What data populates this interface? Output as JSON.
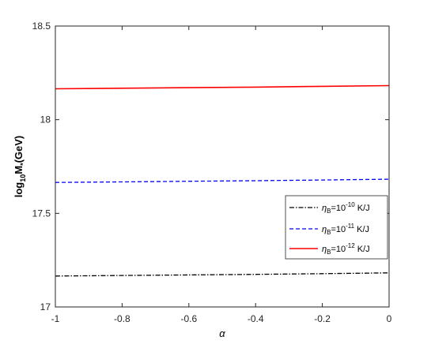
{
  "chart_data": {
    "type": "line",
    "title": "",
    "xlabel": "α",
    "ylabel_base": "log",
    "ylabel_base_sub": "10",
    "ylabel_rest": "M",
    "ylabel_rest_sub": "*",
    "ylabel_unit": "(GeV)",
    "xlim": [
      -1,
      0
    ],
    "ylim": [
      17,
      18.5
    ],
    "x_ticks": [
      -1,
      -0.8,
      -0.6,
      -0.4,
      -0.2,
      0
    ],
    "x_tick_labels": [
      "-1",
      "-0.8",
      "-0.6",
      "-0.4",
      "-0.2",
      "0"
    ],
    "y_ticks": [
      17,
      17.5,
      18,
      18.5
    ],
    "y_tick_labels": [
      "17",
      "17.5",
      "18",
      "18.5"
    ],
    "grid": false,
    "legend_position": "lower-right",
    "x": [
      -1,
      -0.8,
      -0.6,
      -0.4,
      -0.2,
      0
    ],
    "series": [
      {
        "legend_sym": "η",
        "legend_sub": "B",
        "legend_mid": "=10",
        "legend_sup": "-10",
        "legend_unit": " K/J",
        "color": "#000000",
        "dash": "6,2,1.5,2",
        "values": [
          17.165,
          17.168,
          17.171,
          17.174,
          17.178,
          17.182
        ]
      },
      {
        "legend_sym": "η",
        "legend_sub": "B",
        "legend_mid": "=10",
        "legend_sup": "-11",
        "legend_unit": " K/J",
        "color": "#0000ff",
        "dash": "5,3",
        "values": [
          17.665,
          17.668,
          17.671,
          17.674,
          17.678,
          17.682
        ]
      },
      {
        "legend_sym": "η",
        "legend_sub": "B",
        "legend_mid": "=10",
        "legend_sup": "-12",
        "legend_unit": " K/J",
        "color": "#ff0000",
        "dash": "",
        "values": [
          18.165,
          18.168,
          18.171,
          18.174,
          18.178,
          18.182
        ]
      }
    ]
  }
}
